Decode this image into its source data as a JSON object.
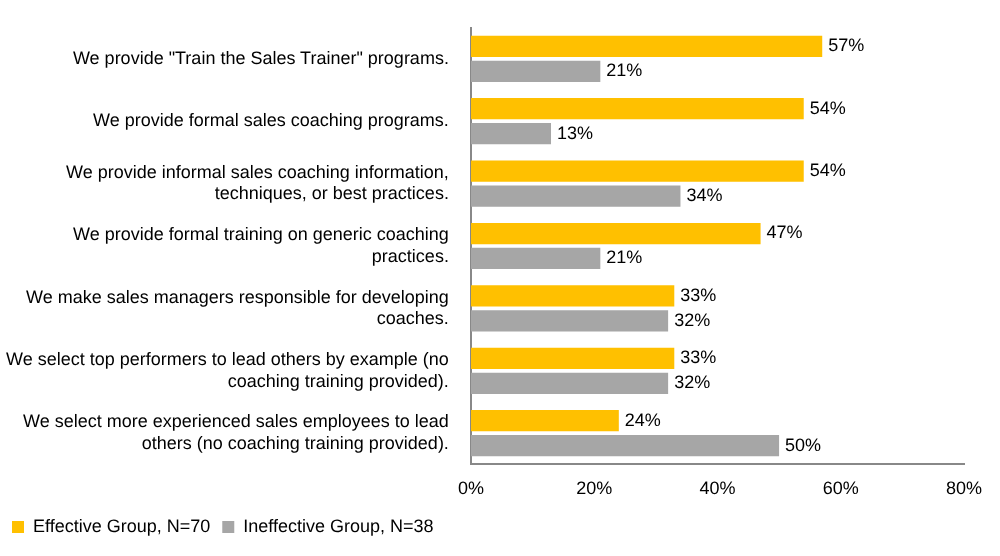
{
  "chart_data": {
    "type": "bar",
    "orientation": "horizontal",
    "categories": [
      "We provide \"Train the Sales Trainer\" programs.",
      "We provide formal sales coaching programs.",
      "We provide informal sales coaching information, techniques, or best practices.",
      "We provide formal training on generic coaching practices.",
      "We make sales managers responsible for developing coaches.",
      "We select top performers to lead others by example (no coaching training provided).",
      "We select more experienced sales employees to lead others (no coaching training provided)."
    ],
    "series": [
      {
        "name": "Effective Group, N=70",
        "color": "#ffc000",
        "values": [
          57,
          54,
          54,
          47,
          33,
          33,
          24
        ],
        "value_labels": [
          "57%",
          "54%",
          "54%",
          "47%",
          "33%",
          "33%",
          "24%"
        ]
      },
      {
        "name": "Ineffective Group, N=38",
        "color": "#a6a6a6",
        "values": [
          21,
          13,
          34,
          21,
          32,
          32,
          50
        ],
        "value_labels": [
          "21%",
          "13%",
          "34%",
          "21%",
          "32%",
          "32%",
          "50%"
        ]
      }
    ],
    "xlim": [
      0,
      80
    ],
    "xticks": [
      {
        "value": 0,
        "label": "0%"
      },
      {
        "value": 20,
        "label": "20%"
      },
      {
        "value": 40,
        "label": "40%"
      },
      {
        "value": 60,
        "label": "60%"
      },
      {
        "value": 80,
        "label": "80%"
      }
    ],
    "grid": false,
    "legend": "bottom left"
  }
}
